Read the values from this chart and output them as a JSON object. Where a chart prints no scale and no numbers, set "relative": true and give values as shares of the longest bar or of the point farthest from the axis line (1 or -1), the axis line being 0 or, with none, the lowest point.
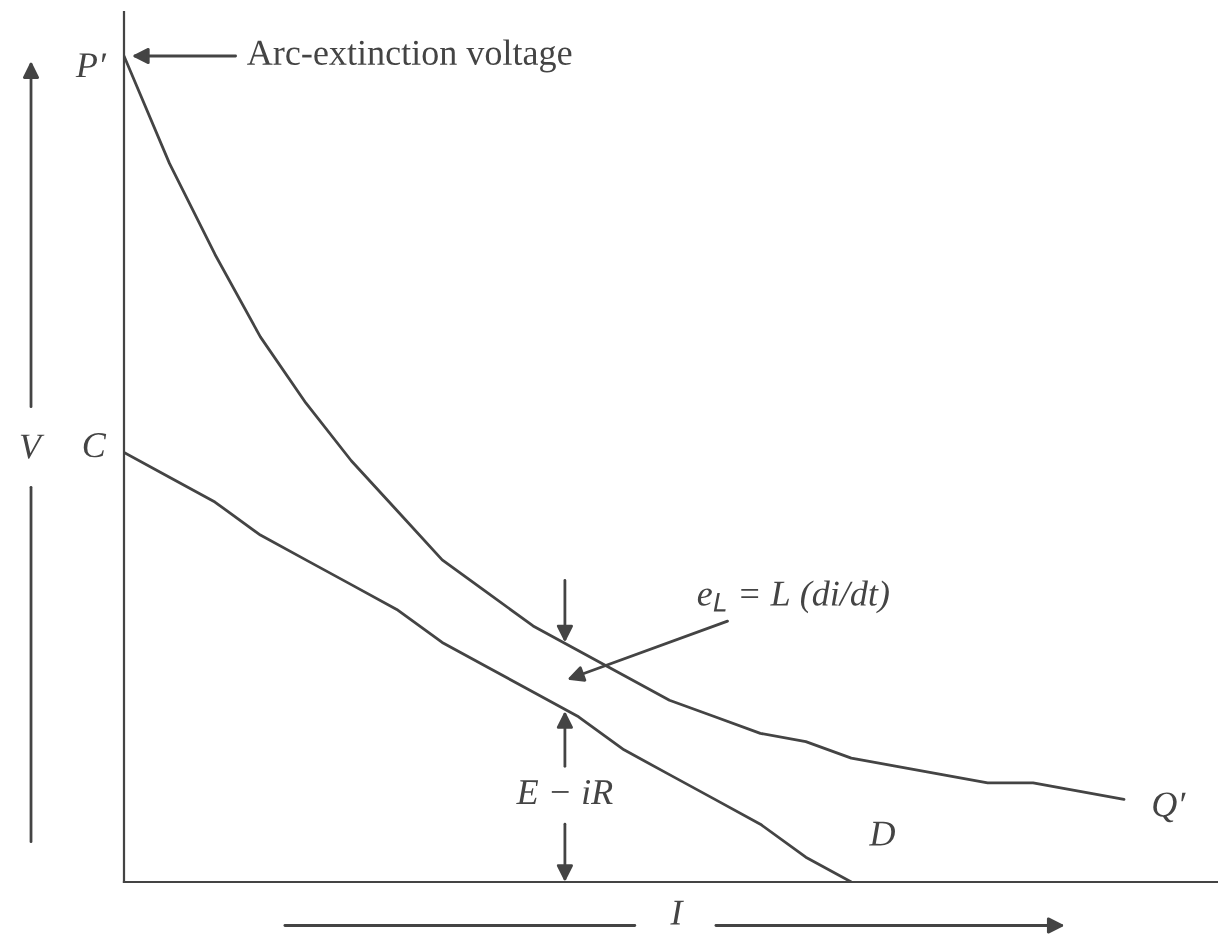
{
  "chart_data": {
    "type": "line",
    "relative": true,
    "xlabel": "I",
    "ylabel": "V",
    "categories": [
      null,
      null,
      null,
      null,
      null,
      null,
      null,
      null,
      null,
      null,
      null,
      null,
      null,
      null,
      null,
      null,
      null,
      null,
      null,
      null,
      null,
      null,
      null
    ],
    "series": [
      {
        "color": "#444444",
        "values": [
          1.0,
          0.87,
          0.76,
          0.66,
          0.58,
          0.51,
          0.45,
          0.39,
          0.35,
          0.31,
          0.28,
          0.25,
          0.22,
          0.2,
          0.18,
          0.17,
          0.15,
          0.14,
          0.13,
          0.12,
          0.12,
          0.11,
          0.1
        ]
      },
      {
        "color": "#444444",
        "values": [
          0.52,
          0.49,
          0.46,
          0.42,
          0.39,
          0.36,
          0.33,
          0.29,
          0.26,
          0.23,
          0.2,
          0.16,
          0.13,
          0.1,
          0.07,
          0.03,
          0,
          null,
          null,
          null,
          null,
          null,
          null
        ]
      }
    ],
    "annotations": [
      "Arc-extinction voltage",
      "P′",
      "C",
      "D",
      "Q′",
      "e$_{L}$ = L (di/dt)",
      "E − iR"
    ]
  }
}
